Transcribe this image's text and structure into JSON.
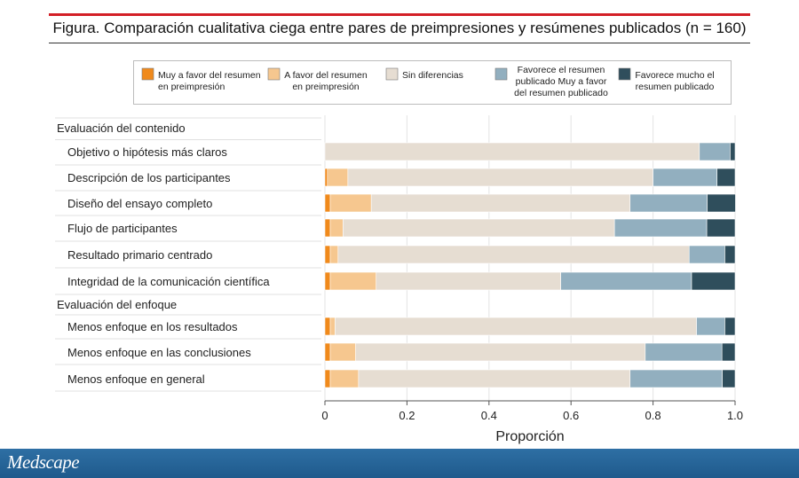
{
  "figure": {
    "title": "Figura. Comparación cualitativa ciega entre pares de preimpresiones y resúmenes publicados (n = 160)"
  },
  "branding": {
    "logo": "Medscape"
  },
  "colors": {
    "series": [
      "#f08a1c",
      "#f6c78f",
      "#e6ddd2",
      "#92afbf",
      "#2f4e5c"
    ],
    "title_rule": "#d31f26",
    "footer": "#1f5a8c"
  },
  "chart_data": {
    "type": "bar",
    "orientation": "horizontal",
    "stacked": true,
    "xlabel": "Proporción",
    "xlim": [
      0,
      1.0
    ],
    "xticks": [
      "0",
      "0.2",
      "0.4",
      "0.6",
      "0.8",
      "1.0"
    ],
    "grid": true,
    "legend_position": "top",
    "groups": [
      {
        "label": "Evaluación del contenido",
        "start": 0,
        "count": 6
      },
      {
        "label": "Evaluación del enfoque",
        "start": 6,
        "count": 3
      }
    ],
    "categories": [
      "Objetivo o hipótesis más claros",
      "Descripción de los participantes",
      "Diseño del ensayo completo",
      "Flujo de participantes",
      "Resultado primario centrado",
      "Integridad de la comunicación científica",
      "Menos enfoque en los resultados",
      "Menos enfoque en las conclusiones",
      "Menos enfoque en general"
    ],
    "series": [
      {
        "name": "Muy a favor del resumen en preimpresión",
        "values": [
          0.0,
          0.006,
          0.013,
          0.013,
          0.013,
          0.013,
          0.013,
          0.013,
          0.013
        ]
      },
      {
        "name": "A favor del resumen en preimpresión",
        "values": [
          0.0,
          0.05,
          0.1,
          0.031,
          0.019,
          0.112,
          0.012,
          0.062,
          0.069
        ]
      },
      {
        "name": "Sin diferencias",
        "values": [
          0.913,
          0.744,
          0.631,
          0.662,
          0.856,
          0.45,
          0.881,
          0.706,
          0.662
        ]
      },
      {
        "name": "Favorece el resumen publicado Muy a favor del resumen publicado",
        "values": [
          0.075,
          0.156,
          0.188,
          0.225,
          0.087,
          0.319,
          0.069,
          0.187,
          0.225
        ]
      },
      {
        "name": "Favorece mucho el resumen publicado",
        "values": [
          0.012,
          0.044,
          0.069,
          0.069,
          0.025,
          0.106,
          0.025,
          0.032,
          0.031
        ]
      }
    ]
  }
}
